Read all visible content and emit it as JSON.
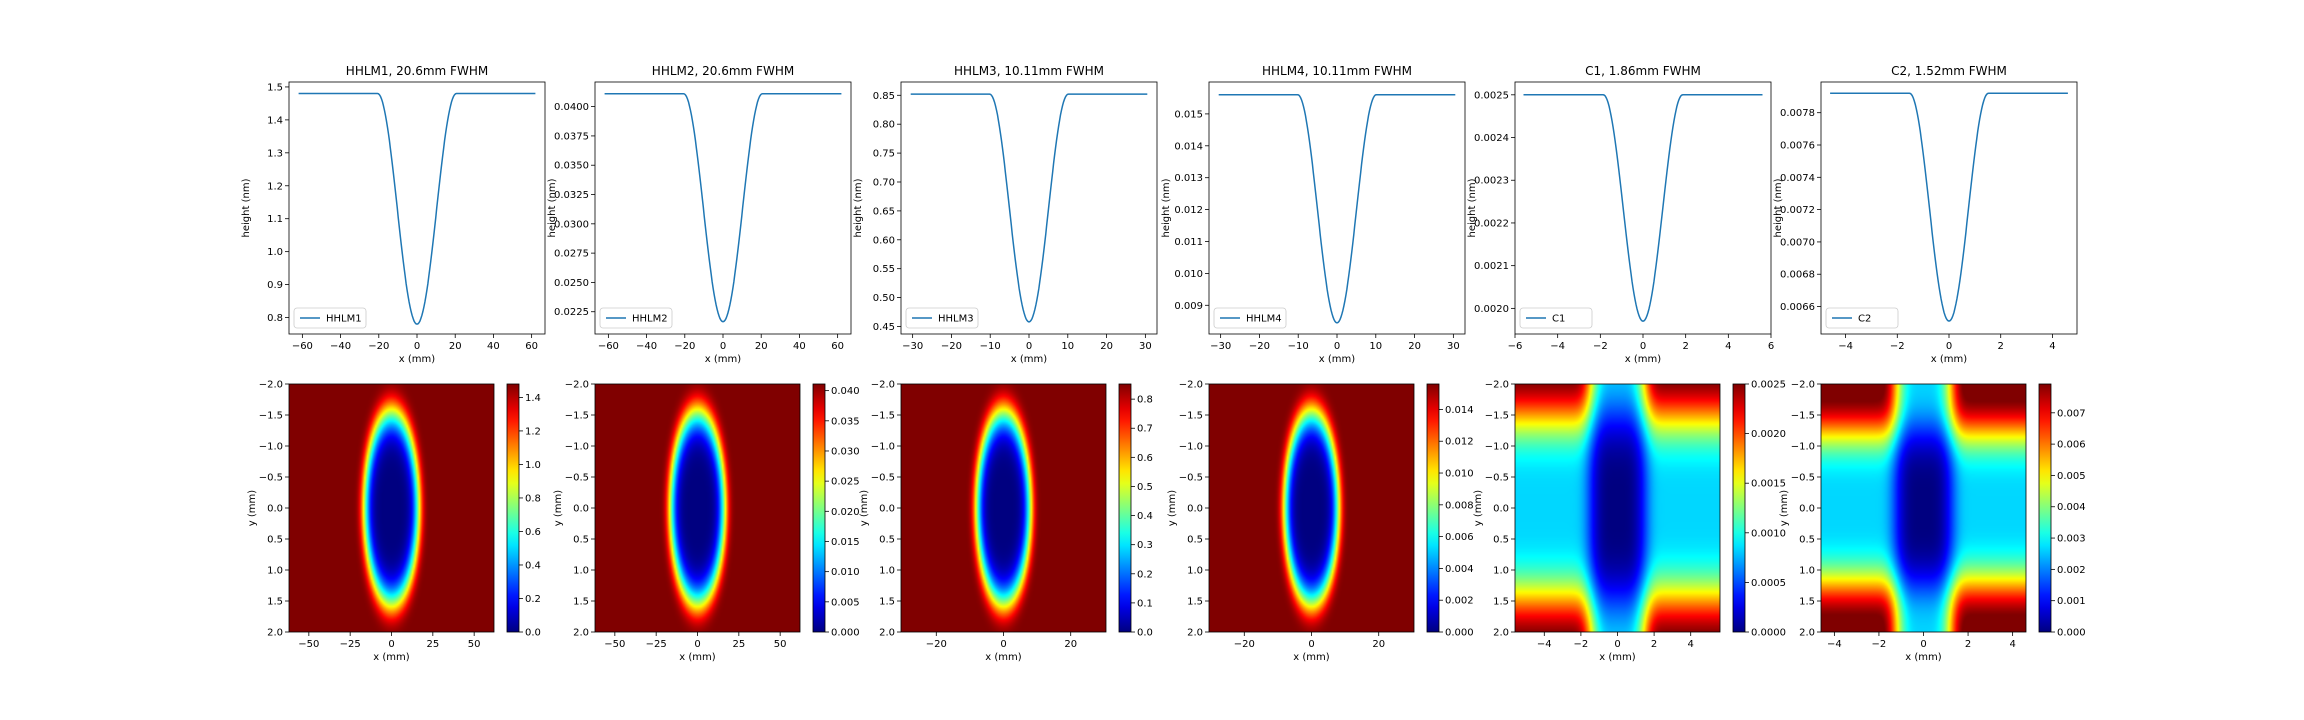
{
  "chart_data": [
    {
      "type": "line",
      "title": "HHLM1, 20.6mm FWHM",
      "xlabel": "x (mm)",
      "ylabel": "height (nm)",
      "legend": "lower-left",
      "series": [
        {
          "name": "HHLM1",
          "color": "#1f77b4"
        }
      ],
      "profile": {
        "flat": 1.48,
        "min": 0.78,
        "edge": 20.6,
        "xmax": 62
      },
      "xlim": [
        -67,
        67
      ],
      "ylim": [
        0.75,
        1.515
      ],
      "xticks": [
        -60,
        -40,
        -20,
        0,
        20,
        40,
        60
      ],
      "xtick_labels": [
        "−60",
        "−40",
        "−20",
        "0",
        "20",
        "40",
        "60"
      ],
      "yticks": [
        0.8,
        0.9,
        1.0,
        1.1,
        1.2,
        1.3,
        1.4,
        1.5
      ],
      "ytick_labels": [
        "0.8",
        "0.9",
        "1.0",
        "1.1",
        "1.2",
        "1.3",
        "1.4",
        "1.5"
      ]
    },
    {
      "type": "line",
      "title": "HHLM2, 20.6mm FWHM",
      "xlabel": "x (mm)",
      "ylabel": "height (nm)",
      "legend": "lower-left",
      "series": [
        {
          "name": "HHLM2",
          "color": "#1f77b4"
        }
      ],
      "profile": {
        "flat": 0.0411,
        "min": 0.02165,
        "edge": 20.6,
        "xmax": 62
      },
      "xlim": [
        -67,
        67
      ],
      "ylim": [
        0.0206,
        0.0421
      ],
      "xticks": [
        -60,
        -40,
        -20,
        0,
        20,
        40,
        60
      ],
      "xtick_labels": [
        "−60",
        "−40",
        "−20",
        "0",
        "20",
        "40",
        "60"
      ],
      "yticks": [
        0.0225,
        0.025,
        0.0275,
        0.03,
        0.0325,
        0.035,
        0.0375,
        0.04
      ],
      "ytick_labels": [
        "0.0225",
        "0.0250",
        "0.0275",
        "0.0300",
        "0.0325",
        "0.0350",
        "0.0375",
        "0.0400"
      ]
    },
    {
      "type": "line",
      "title": "HHLM3, 10.11mm FWHM",
      "xlabel": "x (mm)",
      "ylabel": "height (nm)",
      "legend": "lower-left",
      "series": [
        {
          "name": "HHLM3",
          "color": "#1f77b4"
        }
      ],
      "profile": {
        "flat": 0.852,
        "min": 0.458,
        "edge": 10.11,
        "xmax": 30.5
      },
      "xlim": [
        -33,
        33
      ],
      "ylim": [
        0.437,
        0.873
      ],
      "xticks": [
        -30,
        -20,
        -10,
        0,
        10,
        20,
        30
      ],
      "xtick_labels": [
        "−30",
        "−20",
        "−10",
        "0",
        "10",
        "20",
        "30"
      ],
      "yticks": [
        0.45,
        0.5,
        0.55,
        0.6,
        0.65,
        0.7,
        0.75,
        0.8,
        0.85
      ],
      "ytick_labels": [
        "0.45",
        "0.50",
        "0.55",
        "0.60",
        "0.65",
        "0.70",
        "0.75",
        "0.80",
        "0.85"
      ]
    },
    {
      "type": "line",
      "title": "HHLM4, 10.11mm FWHM",
      "xlabel": "x (mm)",
      "ylabel": "height (nm)",
      "legend": "lower-left",
      "series": [
        {
          "name": "HHLM4",
          "color": "#1f77b4"
        }
      ],
      "profile": {
        "flat": 0.0156,
        "min": 0.00845,
        "edge": 10.11,
        "xmax": 30.5
      },
      "xlim": [
        -33,
        33
      ],
      "ylim": [
        0.0081,
        0.016
      ],
      "xticks": [
        -30,
        -20,
        -10,
        0,
        10,
        20,
        30
      ],
      "xtick_labels": [
        "−30",
        "−20",
        "−10",
        "0",
        "10",
        "20",
        "30"
      ],
      "yticks": [
        0.009,
        0.01,
        0.011,
        0.012,
        0.013,
        0.014,
        0.015
      ],
      "ytick_labels": [
        "0.009",
        "0.010",
        "0.011",
        "0.012",
        "0.013",
        "0.014",
        "0.015"
      ]
    },
    {
      "type": "line",
      "title": "C1, 1.86mm FWHM",
      "xlabel": "x (mm)",
      "ylabel": "height (nm)",
      "legend": "lower-left",
      "series": [
        {
          "name": "C1",
          "color": "#1f77b4"
        }
      ],
      "profile": {
        "flat": 0.0025,
        "min": 0.00197,
        "edge": 1.86,
        "xmax": 5.6
      },
      "xlim": [
        -6,
        6
      ],
      "ylim": [
        0.00194,
        0.00253
      ],
      "xticks": [
        -6,
        -4,
        -2,
        0,
        2,
        4,
        6
      ],
      "xtick_labels": [
        "−6",
        "−4",
        "−2",
        "0",
        "2",
        "4",
        "6"
      ],
      "yticks": [
        0.002,
        0.0021,
        0.0022,
        0.0023,
        0.0024,
        0.0025
      ],
      "ytick_labels": [
        "0.0020",
        "0.0021",
        "0.0022",
        "0.0023",
        "0.0024",
        "0.0025"
      ]
    },
    {
      "type": "line",
      "title": "C2, 1.52mm FWHM",
      "xlabel": "x (mm)",
      "ylabel": "height (nm)",
      "legend": "lower-left",
      "series": [
        {
          "name": "C2",
          "color": "#1f77b4"
        }
      ],
      "profile": {
        "flat": 0.00792,
        "min": 0.00651,
        "edge": 1.52,
        "xmax": 4.6
      },
      "xlim": [
        -4.95,
        4.95
      ],
      "ylim": [
        0.00643,
        0.00799
      ],
      "xticks": [
        -4,
        -2,
        0,
        2,
        4
      ],
      "xtick_labels": [
        "−4",
        "−2",
        "0",
        "2",
        "4"
      ],
      "yticks": [
        0.0066,
        0.0068,
        0.007,
        0.0072,
        0.0074,
        0.0076,
        0.0078
      ],
      "ytick_labels": [
        "0.0066",
        "0.0068",
        "0.0070",
        "0.0072",
        "0.0074",
        "0.0076",
        "0.0078"
      ]
    },
    {
      "type": "heatmap",
      "xlabel": "x (mm)",
      "ylabel": "y (mm)",
      "colormap": "jet",
      "shape": "ellipse",
      "wx": 17,
      "wy": 1.6,
      "zmax": 1.48,
      "xlim": [
        -62,
        62
      ],
      "ylim": [
        -2,
        2
      ],
      "xticks": [
        -50,
        -25,
        0,
        25,
        50
      ],
      "xtick_labels": [
        "−50",
        "−25",
        "0",
        "25",
        "50"
      ],
      "yticks": [
        -2.0,
        -1.5,
        -1.0,
        -0.5,
        0.0,
        0.5,
        1.0,
        1.5,
        2.0
      ],
      "ytick_labels": [
        "−2.0",
        "−1.5",
        "−1.0",
        "−0.5",
        "0.0",
        "0.5",
        "1.0",
        "1.5",
        "2.0"
      ],
      "cbar_range": [
        0,
        1.48
      ],
      "cbar_ticks": [
        0,
        0.2,
        0.4,
        0.6,
        0.8,
        1.0,
        1.2,
        1.4
      ],
      "cbar_labels": [
        "0.0",
        "0.2",
        "0.4",
        "0.6",
        "0.8",
        "1.0",
        "1.2",
        "1.4"
      ]
    },
    {
      "type": "heatmap",
      "xlabel": "x (mm)",
      "ylabel": "y (mm)",
      "colormap": "jet",
      "shape": "ellipse",
      "wx": 17,
      "wy": 1.6,
      "zmax": 0.0411,
      "xlim": [
        -62,
        62
      ],
      "ylim": [
        -2,
        2
      ],
      "xticks": [
        -50,
        -25,
        0,
        25,
        50
      ],
      "xtick_labels": [
        "−50",
        "−25",
        "0",
        "25",
        "50"
      ],
      "yticks": [
        -2.0,
        -1.5,
        -1.0,
        -0.5,
        0.0,
        0.5,
        1.0,
        1.5,
        2.0
      ],
      "ytick_labels": [
        "−2.0",
        "−1.5",
        "−1.0",
        "−0.5",
        "0.0",
        "0.5",
        "1.0",
        "1.5",
        "2.0"
      ],
      "cbar_range": [
        0,
        0.0411
      ],
      "cbar_ticks": [
        0,
        0.005,
        0.01,
        0.015,
        0.02,
        0.025,
        0.03,
        0.035,
        0.04
      ],
      "cbar_labels": [
        "0.000",
        "0.005",
        "0.010",
        "0.015",
        "0.020",
        "0.025",
        "0.030",
        "0.035",
        "0.040"
      ]
    },
    {
      "type": "heatmap",
      "xlabel": "x (mm)",
      "ylabel": "y (mm)",
      "colormap": "jet",
      "shape": "ellipse",
      "wx": 8.3,
      "wy": 1.6,
      "zmax": 0.852,
      "xlim": [
        -30.5,
        30.5
      ],
      "ylim": [
        -2,
        2
      ],
      "xticks": [
        -20,
        0,
        20
      ],
      "xtick_labels": [
        "−20",
        "0",
        "20"
      ],
      "yticks": [
        -2.0,
        -1.5,
        -1.0,
        -0.5,
        0.0,
        0.5,
        1.0,
        1.5,
        2.0
      ],
      "ytick_labels": [
        "−2.0",
        "−1.5",
        "−1.0",
        "−0.5",
        "0.0",
        "0.5",
        "1.0",
        "1.5",
        "2.0"
      ],
      "cbar_range": [
        0,
        0.852
      ],
      "cbar_ticks": [
        0,
        0.1,
        0.2,
        0.3,
        0.4,
        0.5,
        0.6,
        0.7,
        0.8
      ],
      "cbar_labels": [
        "0.0",
        "0.1",
        "0.2",
        "0.3",
        "0.4",
        "0.5",
        "0.6",
        "0.7",
        "0.8"
      ]
    },
    {
      "type": "heatmap",
      "xlabel": "x (mm)",
      "ylabel": "y (mm)",
      "colormap": "jet",
      "shape": "ellipse",
      "wx": 8.3,
      "wy": 1.6,
      "zmax": 0.0156,
      "xlim": [
        -30.5,
        30.5
      ],
      "ylim": [
        -2,
        2
      ],
      "xticks": [
        -20,
        0,
        20
      ],
      "xtick_labels": [
        "−20",
        "0",
        "20"
      ],
      "yticks": [
        -2.0,
        -1.5,
        -1.0,
        -0.5,
        0.0,
        0.5,
        1.0,
        1.5,
        2.0
      ],
      "ytick_labels": [
        "−2.0",
        "−1.5",
        "−1.0",
        "−0.5",
        "0.0",
        "0.5",
        "1.0",
        "1.5",
        "2.0"
      ],
      "cbar_range": [
        0,
        0.0156
      ],
      "cbar_ticks": [
        0,
        0.002,
        0.004,
        0.006,
        0.008,
        0.01,
        0.012,
        0.014
      ],
      "cbar_labels": [
        "0.000",
        "0.002",
        "0.004",
        "0.006",
        "0.008",
        "0.010",
        "0.012",
        "0.014"
      ]
    },
    {
      "type": "heatmap",
      "xlabel": "x (mm)",
      "ylabel": "y (mm)",
      "colormap": "jet",
      "shape": "cross",
      "wx": 1.6,
      "wy": 1.6,
      "zmax": 0.0025,
      "xlim": [
        -5.6,
        5.6
      ],
      "ylim": [
        -2,
        2
      ],
      "xticks": [
        -4,
        -2,
        0,
        2,
        4
      ],
      "xtick_labels": [
        "−4",
        "−2",
        "0",
        "2",
        "4"
      ],
      "yticks": [
        -2.0,
        -1.5,
        -1.0,
        -0.5,
        0.0,
        0.5,
        1.0,
        1.5,
        2.0
      ],
      "ytick_labels": [
        "−2.0",
        "−1.5",
        "−1.0",
        "−0.5",
        "0.0",
        "0.5",
        "1.0",
        "1.5",
        "2.0"
      ],
      "cbar_range": [
        0,
        0.0025
      ],
      "cbar_ticks": [
        0,
        0.0005,
        0.001,
        0.0015,
        0.002,
        0.0025
      ],
      "cbar_labels": [
        "0.0000",
        "0.0005",
        "0.0010",
        "0.0015",
        "0.0020",
        "0.0025"
      ]
    },
    {
      "type": "heatmap",
      "xlabel": "x (mm)",
      "ylabel": "y (mm)",
      "colormap": "jet",
      "shape": "cross",
      "wx": 1.35,
      "wy": 1.35,
      "zmax": 0.00792,
      "xlim": [
        -4.6,
        4.6
      ],
      "ylim": [
        -2,
        2
      ],
      "xticks": [
        -4,
        -2,
        0,
        2,
        4
      ],
      "xtick_labels": [
        "−4",
        "−2",
        "0",
        "2",
        "4"
      ],
      "yticks": [
        -2.0,
        -1.5,
        -1.0,
        -0.5,
        0.0,
        0.5,
        1.0,
        1.5,
        2.0
      ],
      "ytick_labels": [
        "−2.0",
        "−1.5",
        "−1.0",
        "−0.5",
        "0.0",
        "0.5",
        "1.0",
        "1.5",
        "2.0"
      ],
      "cbar_range": [
        0,
        0.00792
      ],
      "cbar_ticks": [
        0,
        0.001,
        0.002,
        0.003,
        0.004,
        0.005,
        0.006,
        0.007
      ],
      "cbar_labels": [
        "0.000",
        "0.001",
        "0.002",
        "0.003",
        "0.004",
        "0.005",
        "0.006",
        "0.007"
      ]
    }
  ]
}
